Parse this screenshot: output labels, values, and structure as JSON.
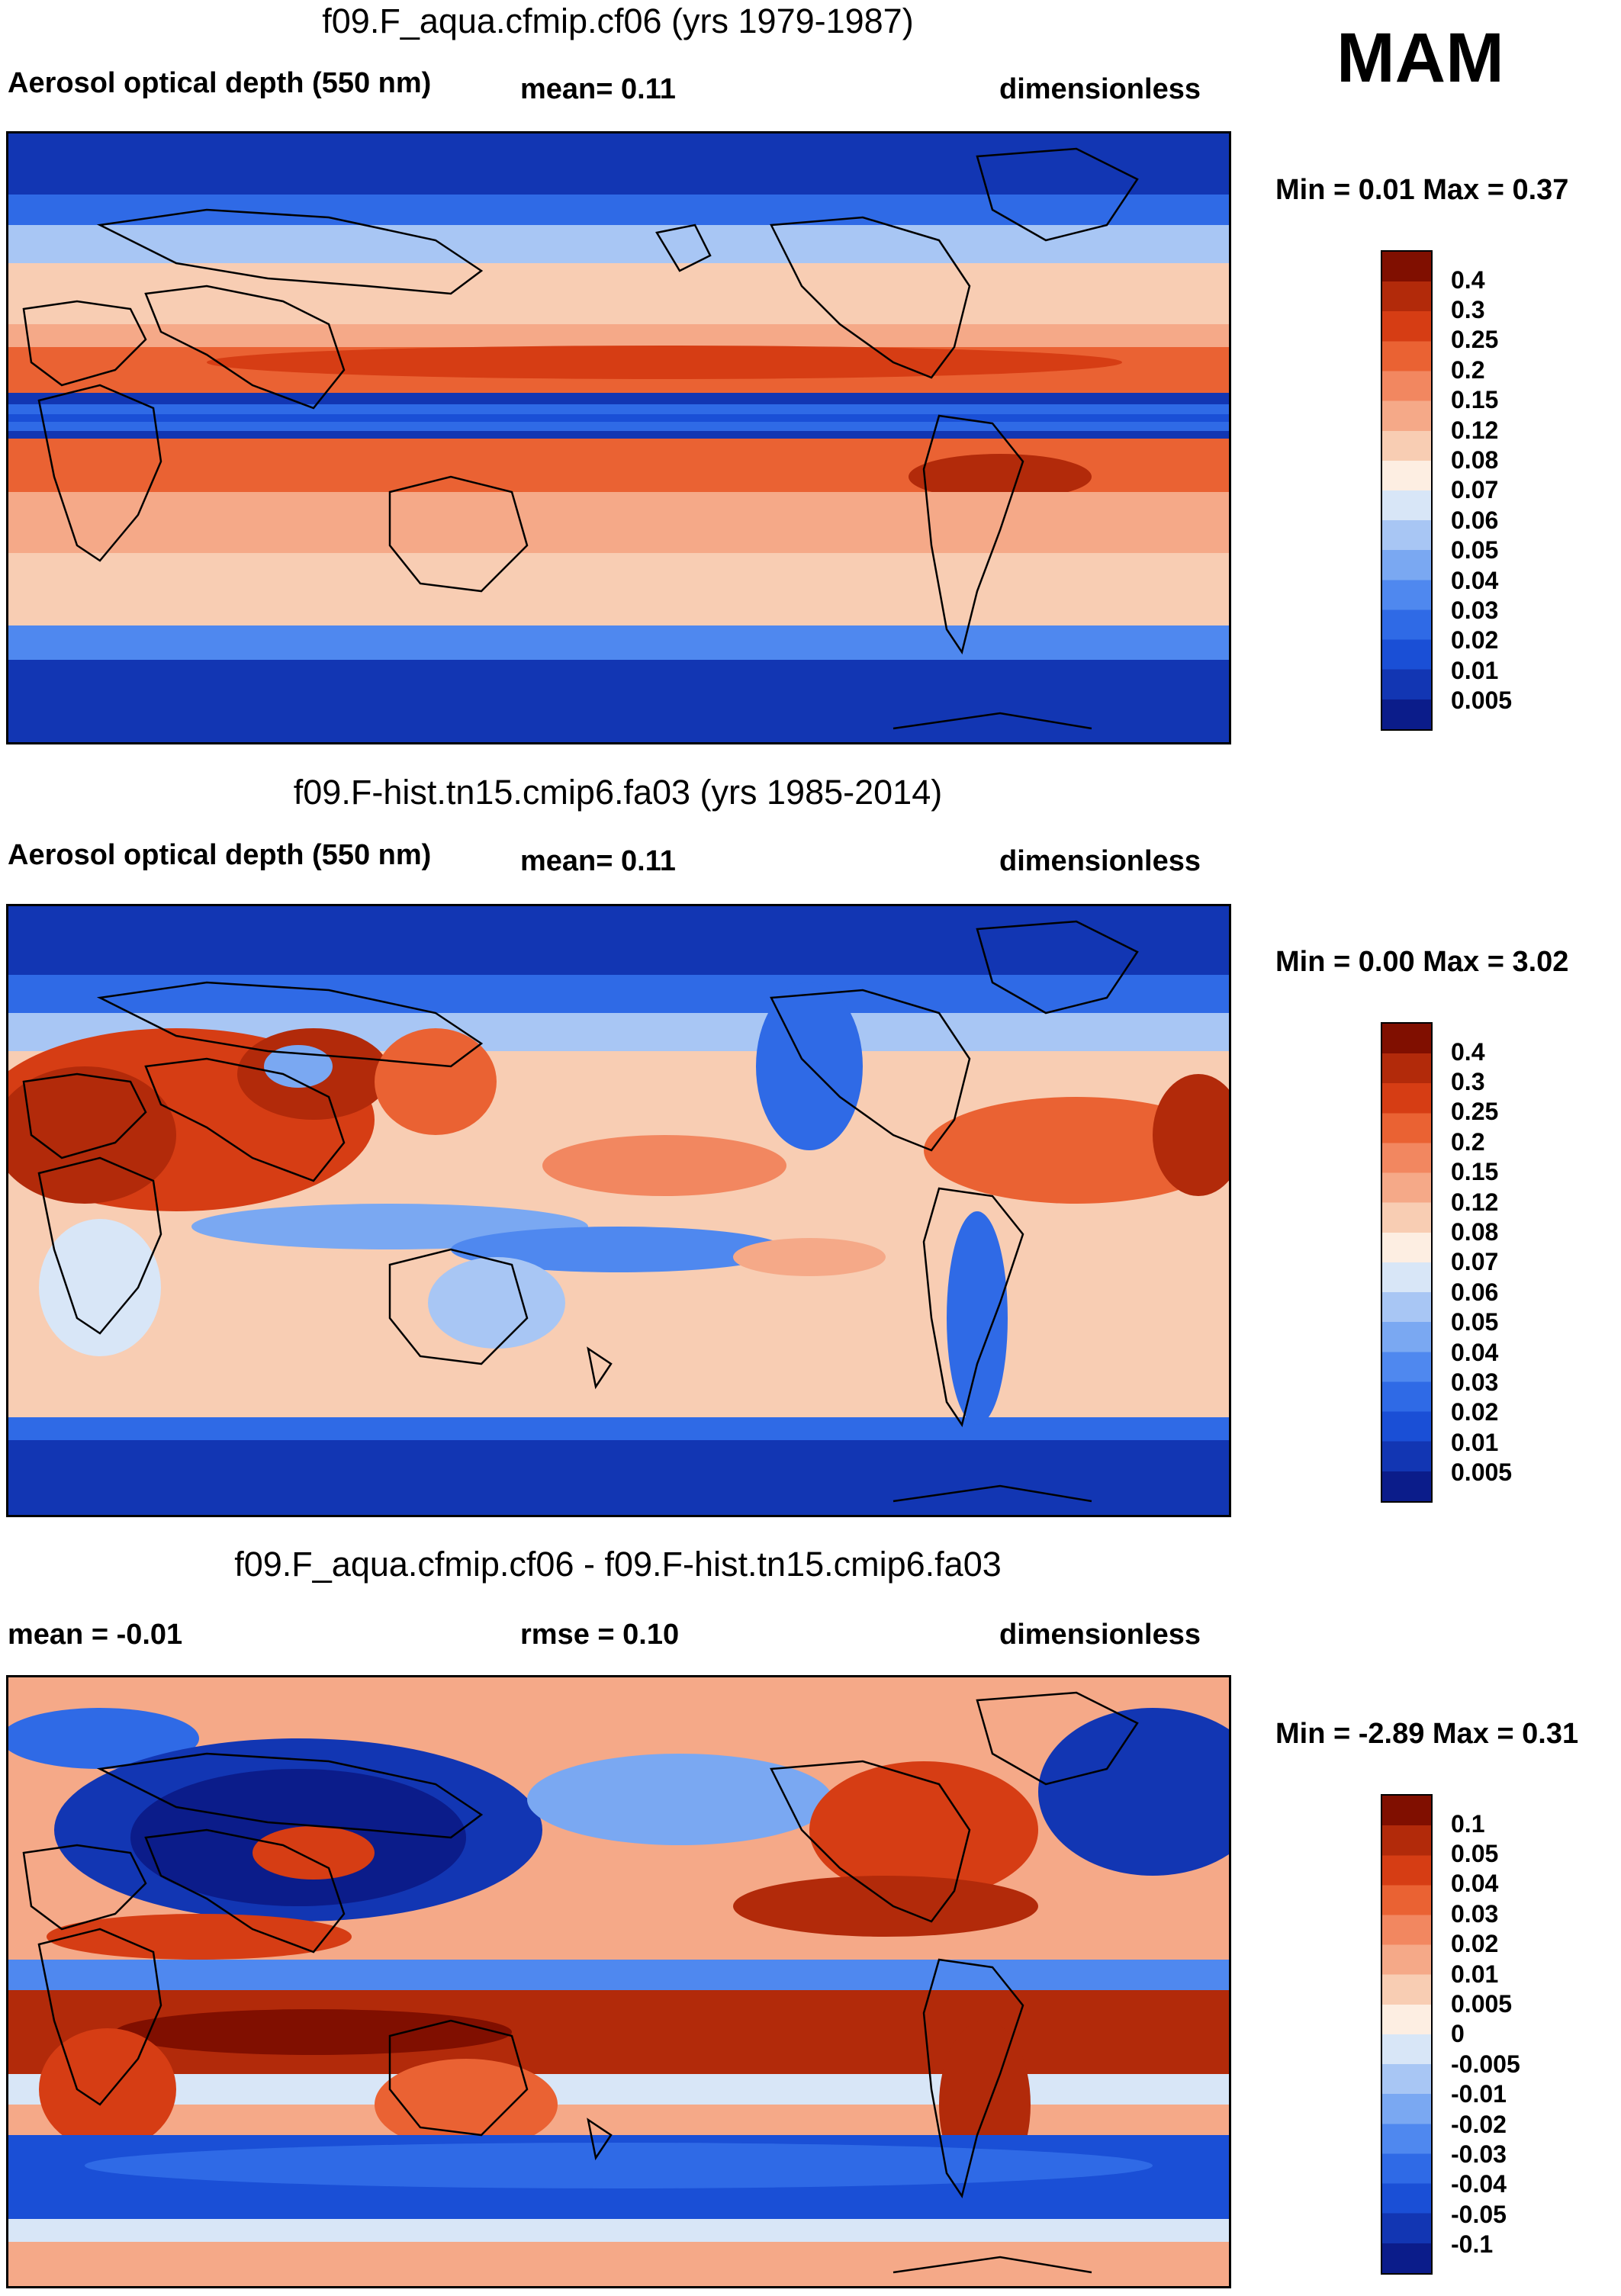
{
  "season": "MAM",
  "panels": [
    {
      "title": "f09.F_aqua.cfmip.cf06 (yrs 1979-1987)",
      "left_label": "Aerosol optical depth (550 nm)",
      "mid_label": "mean=   0.11",
      "right_label": "dimensionless",
      "minmax": "Min =   0.01 Max =   0.37",
      "colorbar": [
        "0.4",
        "0.3",
        "0.25",
        "0.2",
        "0.15",
        "0.12",
        "0.08",
        "0.07",
        "0.06",
        "0.05",
        "0.04",
        "0.03",
        "0.02",
        "0.01",
        "0.005"
      ]
    },
    {
      "title": "f09.F-hist.tn15.cmip6.fa03 (yrs 1985-2014)",
      "left_label": "Aerosol optical depth (550 nm)",
      "mid_label": "mean=   0.11",
      "right_label": "dimensionless",
      "minmax": "Min =   0.00 Max =   3.02",
      "colorbar": [
        "0.4",
        "0.3",
        "0.25",
        "0.2",
        "0.15",
        "0.12",
        "0.08",
        "0.07",
        "0.06",
        "0.05",
        "0.04",
        "0.03",
        "0.02",
        "0.01",
        "0.005"
      ]
    },
    {
      "title": "f09.F_aqua.cfmip.cf06 - f09.F-hist.tn15.cmip6.fa03",
      "left_label": "mean =  -0.01",
      "mid_label": "rmse =   0.10",
      "right_label": "dimensionless",
      "minmax": "Min =  -2.89 Max =   0.31",
      "colorbar": [
        "0.1",
        "0.05",
        "0.04",
        "0.03",
        "0.02",
        "0.01",
        "0.005",
        "0",
        "-0.005",
        "-0.01",
        "-0.02",
        "-0.03",
        "-0.04",
        "-0.05",
        "-0.1"
      ]
    }
  ],
  "colors": {
    "seq": [
      "#0b1c8a",
      "#1236b3",
      "#1a4fd6",
      "#2f6ae6",
      "#4f88ef",
      "#7aa8f2",
      "#a8c6f4",
      "#d8e6f7",
      "#fdeee2",
      "#f8cdb3",
      "#f5a988",
      "#f28760",
      "#ea6233",
      "#d63d14",
      "#b22a0a",
      "#800f00"
    ],
    "ocean_lowlat": "#f6c3a6"
  }
}
